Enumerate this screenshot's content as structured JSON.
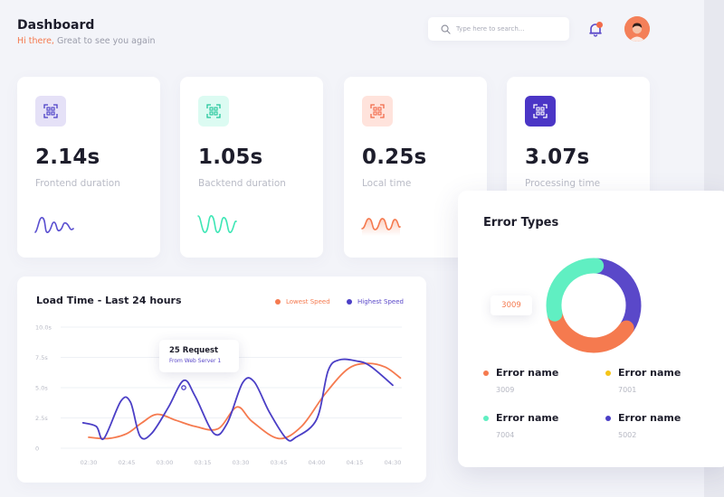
{
  "header": {
    "title": "Dashboard",
    "greeting_hi": "Hi there,",
    "greeting_rest": " Great to see you again"
  },
  "search": {
    "placeholder": "Type here to search..."
  },
  "icons": {
    "search": "search-icon",
    "notification": "bell-icon",
    "avatar": "avatar",
    "card_icon": "scan-icon"
  },
  "stats": [
    {
      "value": "2.14s",
      "label": "Frontend duration",
      "icon_bg": "#e5e1f7",
      "icon_color": "#4b3fc6",
      "spark_color": "#5a4fd0"
    },
    {
      "value": "1.05s",
      "label": "Backtend duration",
      "icon_bg": "#dcfbf2",
      "icon_color": "#23c79c",
      "spark_color": "#3ee6b5"
    },
    {
      "value": "0.25s",
      "label": "Local time",
      "icon_bg": "#ffe3dc",
      "icon_color": "#f26b4a",
      "spark_color": "#f57a4f"
    },
    {
      "value": "3.07s",
      "label": "Processing time",
      "icon_bg": "#4b36c6",
      "icon_color": "#ffffff",
      "spark_color": "#4b36c6"
    }
  ],
  "load_time": {
    "title": "Load Time - Last 24 hours",
    "legend": [
      {
        "name": "Lowest Speed",
        "color": "#f57a4f"
      },
      {
        "name": "Highest Speed",
        "color": "#4b3fc6"
      }
    ],
    "tooltip": {
      "title": "25 Request",
      "subtitle": "From Web Server 1"
    }
  },
  "chart_data": {
    "type": "line",
    "x": [
      "02:30",
      "02:45",
      "03:00",
      "03:15",
      "03:30",
      "03:45",
      "04:00",
      "04:15",
      "04:30"
    ],
    "yticks": [
      "0",
      "2.5s",
      "5.0s",
      "7.5s",
      "10.0s"
    ],
    "ylim": [
      0,
      10
    ],
    "series": [
      {
        "name": "Lowest Speed",
        "color": "#f57a4f",
        "points": [
          [
            0,
            0.9
          ],
          [
            0.5,
            0.8
          ],
          [
            1.0,
            1.2
          ],
          [
            1.4,
            2.1
          ],
          [
            1.8,
            2.8
          ],
          [
            2.3,
            2.3
          ],
          [
            2.8,
            1.8
          ],
          [
            3.4,
            1.6
          ],
          [
            3.9,
            3.4
          ],
          [
            4.3,
            2.2
          ],
          [
            5.0,
            0.8
          ],
          [
            5.6,
            1.8
          ],
          [
            6.2,
            4.4
          ],
          [
            6.8,
            6.5
          ],
          [
            7.3,
            7.0
          ],
          [
            7.8,
            6.7
          ],
          [
            8.2,
            5.8
          ]
        ]
      },
      {
        "name": "Highest Speed",
        "color": "#4b3fc6",
        "points": [
          [
            -0.15,
            2.1
          ],
          [
            0.2,
            1.8
          ],
          [
            0.4,
            0.8
          ],
          [
            0.85,
            3.9
          ],
          [
            1.1,
            3.8
          ],
          [
            1.35,
            1.0
          ],
          [
            1.65,
            1.2
          ],
          [
            2.1,
            3.4
          ],
          [
            2.5,
            5.6
          ],
          [
            2.8,
            4.3
          ],
          [
            3.3,
            1.2
          ],
          [
            3.65,
            2.1
          ],
          [
            4.05,
            5.4
          ],
          [
            4.35,
            5.5
          ],
          [
            4.75,
            3.0
          ],
          [
            5.2,
            0.8
          ],
          [
            5.45,
            0.9
          ],
          [
            6.0,
            2.4
          ],
          [
            6.3,
            6.4
          ],
          [
            6.6,
            7.3
          ],
          [
            7.05,
            7.2
          ],
          [
            7.4,
            6.8
          ],
          [
            8.0,
            5.2
          ]
        ]
      }
    ],
    "tooltip_at": [
      2.5,
      5.0
    ]
  },
  "error_types": {
    "title": "Error Types",
    "badge": "3009",
    "donut": [
      {
        "color": "#5a48c9",
        "fraction": 0.33
      },
      {
        "color": "#f57a4f",
        "fraction": 0.37
      },
      {
        "color": "#60efc2",
        "fraction": 0.3
      }
    ],
    "items": [
      {
        "name": "Error name",
        "value": "3009",
        "color": "#f57a4f"
      },
      {
        "name": "Error name",
        "value": "7001",
        "color": "#f5c518"
      },
      {
        "name": "Error name",
        "value": "7004",
        "color": "#60efc2"
      },
      {
        "name": "Error name",
        "value": "5002",
        "color": "#4b3fc6"
      }
    ]
  }
}
